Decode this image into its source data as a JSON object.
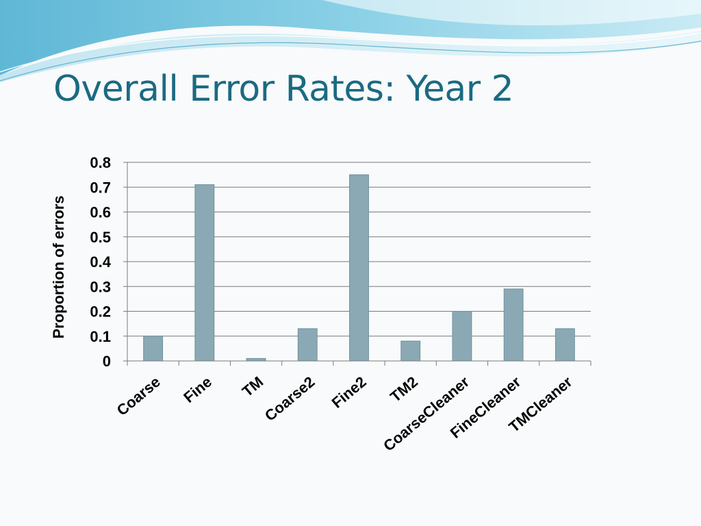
{
  "slide": {
    "title": "Overall Error Rates: Year 2"
  },
  "colors": {
    "bar": "#8aa9b4",
    "bar_edge": "#6f8f9b",
    "grid": "#7a7a7a",
    "title": "#1b6a82"
  },
  "chart_data": {
    "type": "bar",
    "categories": [
      "Coarse",
      "Fine",
      "TM",
      "Coarse2",
      "Fine2",
      "TM2",
      "CoarseCleaner",
      "FineCleaner",
      "TMCleaner"
    ],
    "values": [
      0.1,
      0.71,
      0.01,
      0.13,
      0.75,
      0.08,
      0.2,
      0.29,
      0.13
    ],
    "ylabel": "Proportion of errors",
    "ylim": [
      0,
      0.8
    ],
    "yticks": [
      "0",
      "0.1",
      "0.2",
      "0.3",
      "0.4",
      "0.5",
      "0.6",
      "0.7",
      "0.8"
    ],
    "grid": true,
    "legend": "none"
  }
}
